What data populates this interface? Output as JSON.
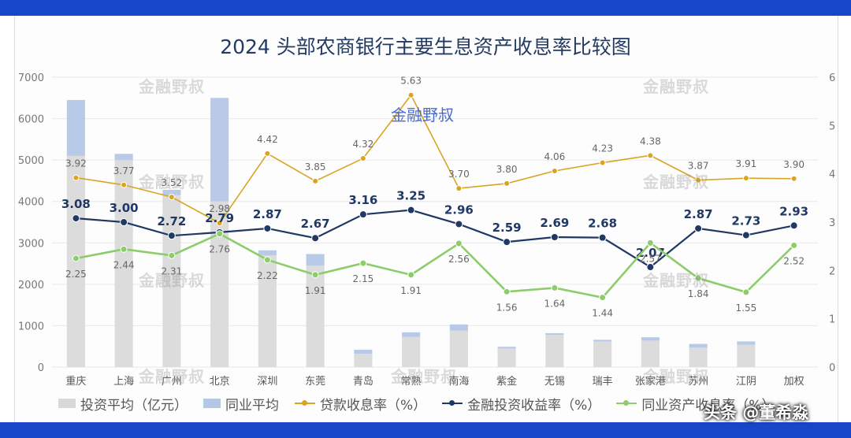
{
  "title": "2024 头部农商银行主要生息资产收息率比较图",
  "credit": "头条 @董希淼",
  "watermarks": [
    "金融野叔",
    "金融野叔",
    "金融野叔",
    "金融野叔",
    "金融野叔",
    "金融野叔",
    "金融野叔",
    "金融野叔",
    "金融野叔",
    "金融野叔"
  ],
  "colors": {
    "band": "#1747c8",
    "invest_bar": "#d9d9d9",
    "peer_bar": "#b4c7e7",
    "loan_line": "#d9a520",
    "fin_line": "#1f3864",
    "peer_line": "#8ccc6a",
    "title": "#233b63"
  },
  "chart_data": {
    "type": "bar+line",
    "categories": [
      "重庆",
      "上海",
      "广州",
      "北京",
      "深圳",
      "东莞",
      "青岛",
      "常熟",
      "南海",
      "紫金",
      "无锡",
      "瑞丰",
      "张家港",
      "苏州",
      "江阴",
      "加权"
    ],
    "y_left": {
      "ticks": [
        "0",
        "1000",
        "2000",
        "3000",
        "4000",
        "5000",
        "6000",
        "7000"
      ],
      "range": [
        0,
        7000
      ]
    },
    "y_right": {
      "ticks": [
        "0",
        "1",
        "2",
        "3",
        "4",
        "5",
        "6"
      ],
      "range": [
        0,
        6
      ]
    },
    "bars": [
      {
        "name": "投资平均（亿元）",
        "axis": "left",
        "values": [
          5100,
          5000,
          4150,
          4000,
          2700,
          2450,
          320,
          730,
          880,
          450,
          780,
          620,
          640,
          470,
          540,
          null
        ]
      },
      {
        "name": "同业平均",
        "axis": "left",
        "values": [
          1350,
          150,
          130,
          2500,
          120,
          280,
          100,
          110,
          150,
          40,
          40,
          40,
          80,
          90,
          80,
          null
        ]
      }
    ],
    "series": [
      {
        "name": "贷款收息率（%）",
        "axis": "right",
        "values": [
          3.92,
          3.77,
          3.52,
          2.98,
          4.42,
          3.85,
          4.32,
          5.63,
          3.7,
          3.8,
          4.06,
          4.23,
          4.38,
          3.87,
          3.91,
          3.9
        ],
        "labels": [
          "3.92",
          "3.77",
          "3.52",
          "2.98",
          "4.42",
          "3.85",
          "4.32",
          "5.63",
          "3.70",
          "3.80",
          "4.06",
          "4.23",
          "4.38",
          "3.87",
          "3.91",
          "3.90"
        ]
      },
      {
        "name": "金融投资收益率（%）",
        "axis": "right",
        "values": [
          3.08,
          3.0,
          2.72,
          2.79,
          2.87,
          2.67,
          3.16,
          3.25,
          2.96,
          2.59,
          2.69,
          2.68,
          2.07,
          2.87,
          2.73,
          2.93
        ],
        "labels": [
          "3.08",
          "3.00",
          "2.72",
          "2.79",
          "2.87",
          "2.67",
          "3.16",
          "3.25",
          "2.96",
          "2.59",
          "2.69",
          "2.68",
          "2.07",
          "2.87",
          "2.73",
          "2.93"
        ]
      },
      {
        "name": "同业资产收息率（%）",
        "axis": "right",
        "values": [
          2.25,
          2.44,
          2.31,
          2.76,
          2.22,
          1.91,
          2.15,
          1.91,
          2.56,
          1.56,
          1.64,
          1.44,
          2.57,
          1.84,
          1.55,
          2.52
        ],
        "labels": [
          "2.25",
          "2.44",
          "2.31",
          "2.76",
          "2.22",
          "1.91",
          "2.15",
          "1.91",
          "2.56",
          "1.56",
          "1.64",
          "1.44",
          "2.57",
          "1.84",
          "1.55",
          "2.52"
        ]
      }
    ],
    "legend": [
      "投资平均（亿元）",
      "同业平均",
      "贷款收息率（%）",
      "金融投资收益率（%）",
      "同业资产收息率（%）"
    ],
    "legend_position": "bottom"
  }
}
